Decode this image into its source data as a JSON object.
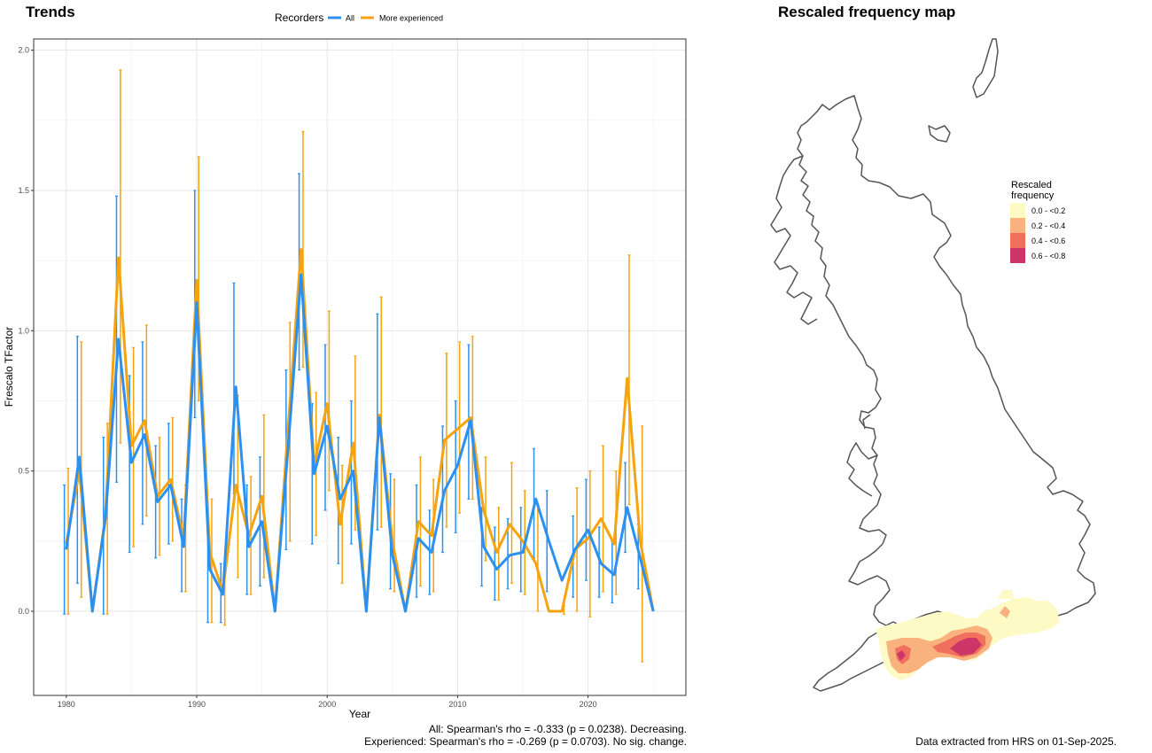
{
  "panels": {
    "trends_title": "Trends",
    "map_title": "Rescaled frequency map"
  },
  "chart_data": [
    {
      "type": "line",
      "title": "Trends",
      "xlabel": "Year",
      "ylabel": "Frescalo TFactor",
      "xlim": [
        1977.5,
        2027.5
      ],
      "ylim": [
        -0.3,
        2.04
      ],
      "x_ticks": [
        1980,
        1990,
        2000,
        2010,
        2020
      ],
      "y_ticks": [
        0.0,
        0.5,
        1.0,
        1.5,
        2.0
      ],
      "y_tick_labels": [
        "0.0",
        "0.5",
        "1.0",
        "1.5",
        "2.0"
      ],
      "grid": true,
      "legend": {
        "title": "Recorders",
        "position": "top"
      },
      "series": [
        {
          "name": "All",
          "color": "#2b90f0",
          "x": [
            1980,
            1981,
            1982,
            1983,
            1984,
            1985,
            1986,
            1987,
            1988,
            1989,
            1990,
            1991,
            1992,
            1993,
            1994,
            1995,
            1996,
            1997,
            1998,
            1999,
            2000,
            2001,
            2002,
            2003,
            2004,
            2005,
            2006,
            2007,
            2008,
            2009,
            2010,
            2011,
            2012,
            2013,
            2014,
            2015,
            2016,
            2017,
            2018,
            2019,
            2020,
            2021,
            2022,
            2023,
            2024,
            2025
          ],
          "y": [
            0.22,
            0.55,
            0.0,
            0.33,
            0.97,
            0.53,
            0.63,
            0.39,
            0.45,
            0.23,
            1.1,
            0.15,
            0.06,
            0.8,
            0.23,
            0.32,
            0.0,
            0.58,
            1.2,
            0.49,
            0.66,
            0.4,
            0.5,
            0.0,
            0.69,
            0.2,
            0.0,
            0.26,
            0.21,
            0.43,
            0.52,
            0.68,
            0.23,
            0.15,
            0.2,
            0.21,
            0.4,
            0.25,
            0.11,
            0.22,
            0.29,
            0.17,
            0.13,
            0.37,
            0.19,
            0.0
          ],
          "lower": [
            -0.01,
            0.1,
            null,
            -0.01,
            0.46,
            0.21,
            0.31,
            0.19,
            0.24,
            0.07,
            0.69,
            -0.04,
            -0.04,
            0.42,
            0.06,
            0.09,
            null,
            0.22,
            0.86,
            0.24,
            0.36,
            0.17,
            0.24,
            null,
            0.29,
            0.08,
            null,
            0.05,
            0.06,
            0.21,
            0.28,
            0.4,
            0.09,
            0.04,
            0.08,
            0.07,
            0.19,
            0.07,
            null,
            0.05,
            0.11,
            0.05,
            0.03,
            0.21,
            0.08,
            null
          ],
          "upper": [
            0.45,
            0.98,
            null,
            0.62,
            1.48,
            0.84,
            0.96,
            0.59,
            0.67,
            0.4,
            1.5,
            0.33,
            0.17,
            1.17,
            0.45,
            0.55,
            null,
            0.86,
            1.56,
            0.74,
            0.95,
            0.62,
            0.75,
            null,
            1.06,
            0.49,
            null,
            0.45,
            0.36,
            0.66,
            0.75,
            0.95,
            0.37,
            0.3,
            0.33,
            0.37,
            0.58,
            0.43,
            0.18,
            0.34,
            0.47,
            0.3,
            0.25,
            0.53,
            0.31,
            null
          ]
        },
        {
          "name": "More experienced",
          "color": "#f5a30e",
          "x": [
            1980,
            1981,
            1982,
            1983,
            1984,
            1985,
            1986,
            1987,
            1988,
            1989,
            1990,
            1991,
            1992,
            1993,
            1994,
            1995,
            1996,
            1997,
            1998,
            1999,
            2000,
            2001,
            2002,
            2003,
            2004,
            2005,
            2006,
            2007,
            2008,
            2009,
            2010,
            2011,
            2012,
            2013,
            2014,
            2015,
            2016,
            2017,
            2018,
            2019,
            2020,
            2021,
            2022,
            2023,
            2024,
            2025
          ],
          "y": [
            0.24,
            0.5,
            0.0,
            0.34,
            1.26,
            0.59,
            0.68,
            0.41,
            0.47,
            0.26,
            1.18,
            0.21,
            0.07,
            0.45,
            0.27,
            0.41,
            0.0,
            0.65,
            1.29,
            0.52,
            0.74,
            0.31,
            0.6,
            0.0,
            0.7,
            0.25,
            0.0,
            0.32,
            0.27,
            0.61,
            0.65,
            0.69,
            0.36,
            0.21,
            0.31,
            0.25,
            0.17,
            0.0,
            0.0,
            0.22,
            0.26,
            0.33,
            0.24,
            0.83,
            0.25,
            0.0
          ],
          "lower": [
            -0.01,
            0.05,
            null,
            -0.01,
            0.6,
            0.23,
            0.34,
            0.2,
            0.25,
            0.07,
            0.75,
            -0.04,
            -0.05,
            0.12,
            0.06,
            0.12,
            null,
            0.25,
            0.87,
            0.27,
            0.43,
            0.1,
            0.29,
            null,
            0.3,
            0.07,
            null,
            0.09,
            0.07,
            0.3,
            0.35,
            0.4,
            0.18,
            0.04,
            0.1,
            0.06,
            0.0,
            null,
            -0.01,
            0.0,
            -0.02,
            0.07,
            0.06,
            0.38,
            -0.18,
            null
          ],
          "upper": [
            0.51,
            0.96,
            null,
            0.67,
            1.93,
            0.94,
            1.02,
            0.62,
            0.69,
            0.45,
            1.62,
            0.4,
            0.17,
            0.77,
            0.48,
            0.7,
            null,
            1.03,
            1.71,
            0.78,
            1.07,
            0.52,
            0.91,
            null,
            1.12,
            0.47,
            null,
            0.55,
            0.47,
            0.92,
            0.96,
            0.98,
            0.55,
            0.37,
            0.53,
            0.43,
            0.38,
            null,
            0.02,
            0.44,
            0.5,
            0.59,
            0.5,
            1.27,
            0.66,
            null
          ]
        }
      ],
      "annotations": [
        "All: Spearman's rho = -0.333 (p = 0.0238). Decreasing.",
        "Experienced: Spearman's rho = -0.269 (p = 0.0703). No sig. change."
      ]
    }
  ],
  "map": {
    "legend": {
      "title_line1": "Rescaled",
      "title_line2": "frequency",
      "items": [
        {
          "label": "0.0 - <0.2",
          "color": "#fdfac5"
        },
        {
          "label": "0.2 - <0.4",
          "color": "#f9b27e"
        },
        {
          "label": "0.4 - <0.6",
          "color": "#f0705d"
        },
        {
          "label": "0.6 - <0.8",
          "color": "#cc3667"
        }
      ]
    },
    "source_note": "Data extracted from HRS on 01-Sep-2025."
  }
}
